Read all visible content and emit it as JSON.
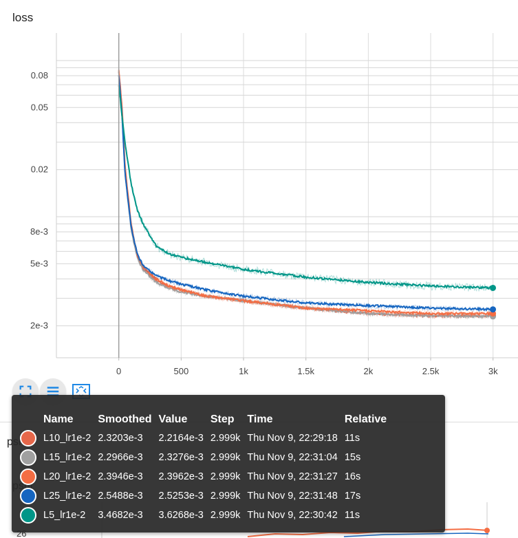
{
  "chart_title": "loss",
  "background_chart_label": "psnr",
  "background_tick_label": "26",
  "toolbar": {
    "fullscreen_icon": "fullscreen-icon",
    "legend_icon": "menu-lines-icon",
    "fit_icon": "fit-domain-icon"
  },
  "chart_data": {
    "type": "line",
    "title": "loss",
    "xlabel": "",
    "ylabel": "",
    "xlim": [
      -500,
      3200
    ],
    "ylim": [
      0.00125,
      0.15
    ],
    "yscale": "log",
    "x_ticks": [
      0,
      500,
      1000,
      1500,
      2000,
      2500,
      3000
    ],
    "x_tick_labels": [
      "0",
      "500",
      "1k",
      "1.5k",
      "2k",
      "2.5k",
      "3k"
    ],
    "y_ticks": [
      0.002,
      0.005,
      0.008,
      0.02,
      0.05,
      0.08
    ],
    "y_tick_labels": [
      "2e-3",
      "5e-3",
      "8e-3",
      "0.02",
      "0.05",
      "0.08"
    ],
    "grid": true,
    "series": [
      {
        "name": "L10_lr1e-2",
        "color": "#e6674a",
        "x": [
          0,
          25,
          50,
          100,
          150,
          200,
          300,
          400,
          500,
          700,
          1000,
          1500,
          2000,
          2500,
          2999
        ],
        "y": [
          0.085,
          0.05,
          0.02,
          0.0085,
          0.0055,
          0.0046,
          0.0039,
          0.0036,
          0.0034,
          0.0031,
          0.0029,
          0.0026,
          0.0024,
          0.00232,
          0.00232
        ]
      },
      {
        "name": "L15_lr1e-2",
        "color": "#a0a0a0",
        "x": [
          0,
          25,
          50,
          100,
          150,
          200,
          300,
          400,
          500,
          700,
          1000,
          1500,
          2000,
          2500,
          2999
        ],
        "y": [
          0.085,
          0.048,
          0.019,
          0.0082,
          0.0054,
          0.0045,
          0.0038,
          0.0035,
          0.0033,
          0.0031,
          0.0029,
          0.0026,
          0.0024,
          0.00232,
          0.0023
        ]
      },
      {
        "name": "L20_lr1e-2",
        "color": "#f46d43",
        "x": [
          0,
          25,
          50,
          100,
          150,
          200,
          300,
          400,
          500,
          700,
          1000,
          1500,
          2000,
          2500,
          2999
        ],
        "y": [
          0.086,
          0.052,
          0.021,
          0.0088,
          0.0056,
          0.0047,
          0.004,
          0.0036,
          0.0034,
          0.0031,
          0.0029,
          0.0026,
          0.0025,
          0.0024,
          0.0024
        ]
      },
      {
        "name": "L25_lr1e-2",
        "color": "#1565c0",
        "x": [
          0,
          25,
          50,
          100,
          150,
          200,
          300,
          400,
          500,
          700,
          1000,
          1500,
          2000,
          2500,
          2999
        ],
        "y": [
          0.08,
          0.046,
          0.019,
          0.0085,
          0.0057,
          0.0048,
          0.0042,
          0.0039,
          0.0037,
          0.0034,
          0.0031,
          0.0028,
          0.0027,
          0.0026,
          0.00255
        ]
      },
      {
        "name": "L5_lr1e-2",
        "color": "#009688",
        "x": [
          0,
          25,
          50,
          100,
          150,
          200,
          300,
          400,
          500,
          700,
          1000,
          1500,
          2000,
          2500,
          2999
        ],
        "y": [
          0.07,
          0.045,
          0.03,
          0.016,
          0.011,
          0.0088,
          0.0065,
          0.0058,
          0.0055,
          0.0051,
          0.0046,
          0.0041,
          0.0038,
          0.0036,
          0.0035
        ]
      }
    ]
  },
  "tooltip": {
    "headers": [
      "Name",
      "Smoothed",
      "Value",
      "Step",
      "Time",
      "Relative"
    ],
    "rows": [
      {
        "name": "L10_lr1e-2",
        "color": "#e6674a",
        "smoothed": "2.3203e-3",
        "value": "2.2164e-3",
        "step": "2.999k",
        "time": "Thu Nov 9, 22:29:18",
        "relative": "11s"
      },
      {
        "name": "L15_lr1e-2",
        "color": "#a0a0a0",
        "smoothed": "2.2966e-3",
        "value": "2.3276e-3",
        "step": "2.999k",
        "time": "Thu Nov 9, 22:31:04",
        "relative": "15s"
      },
      {
        "name": "L20_lr1e-2",
        "color": "#f46d43",
        "smoothed": "2.3946e-3",
        "value": "2.3962e-3",
        "step": "2.999k",
        "time": "Thu Nov 9, 22:31:27",
        "relative": "16s"
      },
      {
        "name": "L25_lr1e-2",
        "color": "#1565c0",
        "smoothed": "2.5488e-3",
        "value": "2.5253e-3",
        "step": "2.999k",
        "time": "Thu Nov 9, 22:31:48",
        "relative": "17s"
      },
      {
        "name": "L5_lr1e-2",
        "color": "#009688",
        "smoothed": "3.4682e-3",
        "value": "3.6268e-3",
        "step": "2.999k",
        "time": "Thu Nov 9, 22:30:42",
        "relative": "11s"
      }
    ]
  }
}
